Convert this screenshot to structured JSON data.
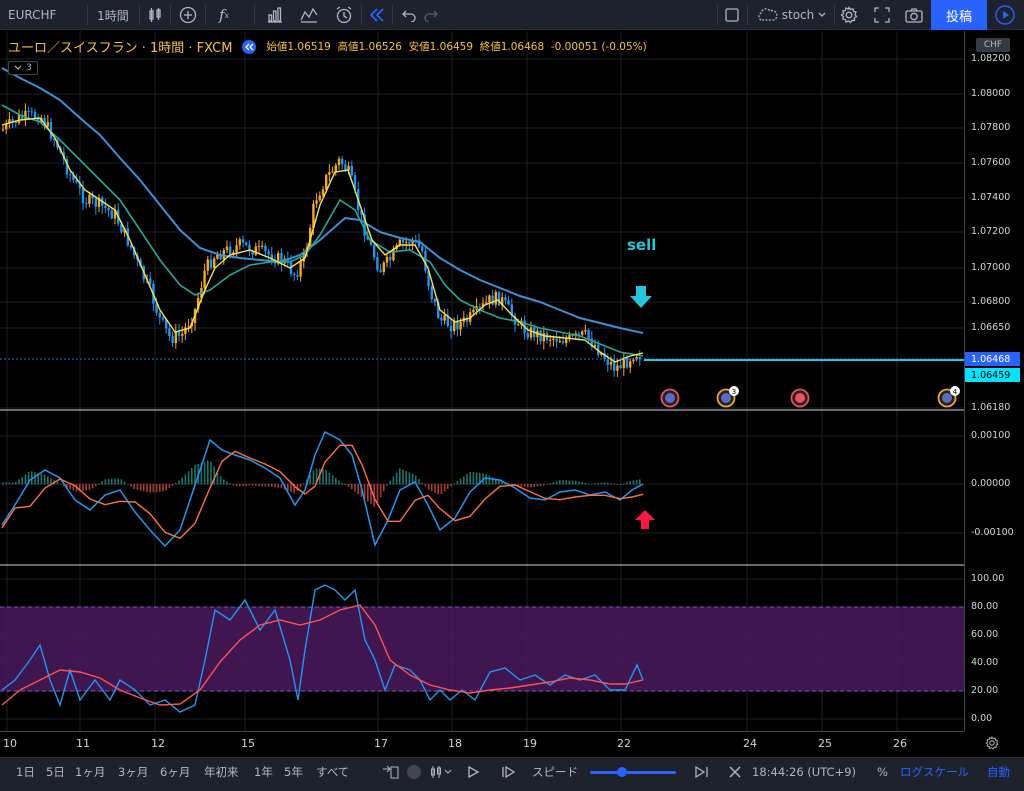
{
  "toolbar": {
    "symbol": "EURCHF",
    "interval": "1時間",
    "template_name": "stoch",
    "post_label": "投稿"
  },
  "legend": {
    "title": "ユーロ／スイスフラン · 1時間 · FXCM",
    "open_label": "始値",
    "open": "1.06519",
    "high_label": "高値",
    "high": "1.06526",
    "low_label": "安値",
    "low": "1.06459",
    "close_label": "終値",
    "close": "1.06468",
    "change": "-0.00051 (-0.05%)"
  },
  "collapse_label": "3",
  "currency_badge": "CHF",
  "annotation": {
    "text": "sell"
  },
  "price_axis": {
    "main_ticks": [
      "1.08200",
      "1.08000",
      "1.07800",
      "1.07600",
      "1.07400",
      "1.07200",
      "1.07000",
      "1.06800",
      "1.06650",
      "1.06180"
    ],
    "current_price": "1.06468",
    "low_price": "1.06459",
    "macd_ticks": [
      "0.00100",
      "0.00000",
      "-0.00100"
    ],
    "stoch_ticks": [
      "100.00",
      "80.00",
      "60.00",
      "40.00",
      "20.00",
      "0.00"
    ]
  },
  "event_badges": [
    "",
    "3",
    "",
    "4"
  ],
  "time_axis": [
    "10",
    "11",
    "12",
    "15",
    "17",
    "18",
    "19",
    "22",
    "24",
    "25",
    "26"
  ],
  "bottom_bar": {
    "ranges": [
      "1日",
      "5日",
      "1ヶ月",
      "3ヶ月",
      "6ヶ月",
      "年初来",
      "1年",
      "5年",
      "すべて"
    ],
    "speed_label": "スピード",
    "clock": "18:44:26 (UTC+9)",
    "percent": "%",
    "log_scale": "ログスケール",
    "auto": "自動"
  },
  "colors": {
    "up": "#f5a623",
    "down": "#2196f3",
    "ma_fast": "#f5e356",
    "ma_mid": "#26a69a",
    "ma_slow": "#3d8fd6",
    "accent": "#2962ff",
    "sell": "#26c6da",
    "arrow_up": "#ff1744",
    "stoch_band": "#4a1a5e"
  }
}
